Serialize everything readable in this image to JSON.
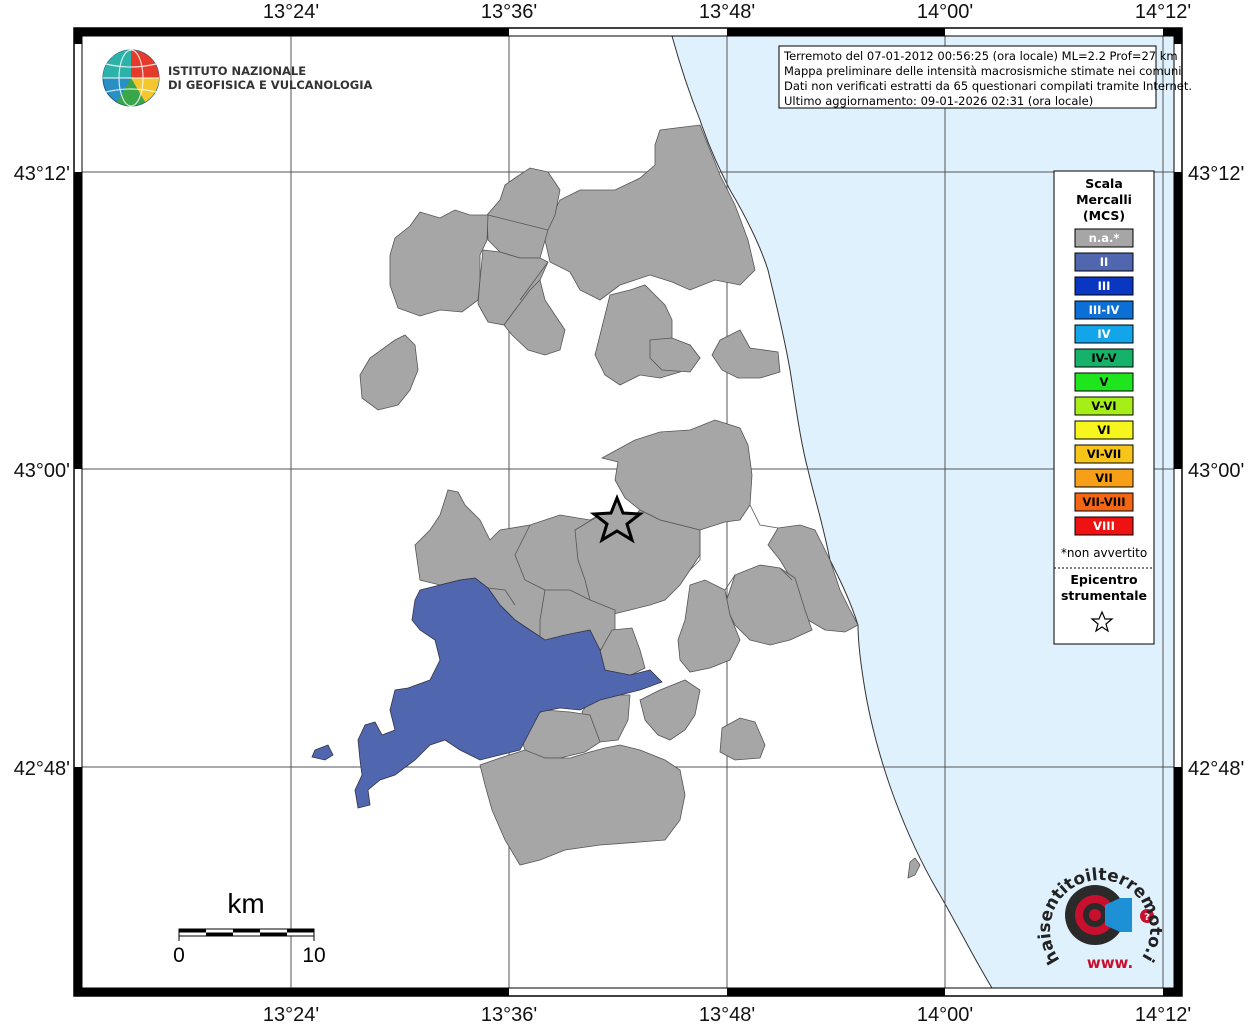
{
  "map": {
    "top_axis_labels": [
      "13°24'",
      "13°36'",
      "13°48'",
      "14°00'",
      "14°12'"
    ],
    "bottom_axis_labels": [
      "13°24'",
      "13°36'",
      "13°48'",
      "14°00'",
      "14°12'"
    ],
    "left_axis_labels": [
      "43°12'",
      "43°00'",
      "42°48'"
    ],
    "right_axis_labels": [
      "43°12'",
      "43°00'",
      "42°48'"
    ],
    "colors": {
      "sea": "#dff1fd",
      "not_felt": "#a6a6a6",
      "intensity_II": "#5066ae",
      "border": "#000000"
    }
  },
  "logo": {
    "line1": "ISTITUTO NAZIONALE",
    "line2": "DI GEOFISICA E VULCANOLOGIA"
  },
  "info_box": {
    "lines": [
      "Terremoto del 07-01-2012 00:56:25 (ora locale) ML=2.2 Prof=27 km",
      "Mappa preliminare delle intensità macrosismiche stimate nei comuni",
      "Dati non verificati estratti da 65 questionari compilati tramite Internet.",
      "Ultimo aggiornamento: 09-01-2026 02:31 (ora locale)"
    ]
  },
  "legend": {
    "title_lines": [
      "Scala",
      "Mercalli",
      "(MCS)"
    ],
    "items": [
      {
        "label": "n.a.*",
        "color": "#a6a6a6",
        "text_color": "#ffffff"
      },
      {
        "label": "II",
        "color": "#5066ae",
        "text_color": "#ffffff"
      },
      {
        "label": "III",
        "color": "#0a37c2",
        "text_color": "#ffffff"
      },
      {
        "label": "III-IV",
        "color": "#0c6fd6",
        "text_color": "#ffffff"
      },
      {
        "label": "IV",
        "color": "#12a5ea",
        "text_color": "#ffffff"
      },
      {
        "label": "IV-V",
        "color": "#16b26a",
        "text_color": "#000000"
      },
      {
        "label": "V",
        "color": "#1fe51f",
        "text_color": "#000000"
      },
      {
        "label": "V-VI",
        "color": "#a6ee17",
        "text_color": "#000000"
      },
      {
        "label": "VI",
        "color": "#f7f51e",
        "text_color": "#000000"
      },
      {
        "label": "VI-VII",
        "color": "#f7c41a",
        "text_color": "#000000"
      },
      {
        "label": "VII",
        "color": "#f7a017",
        "text_color": "#000000"
      },
      {
        "label": "VII-VIII",
        "color": "#f46614",
        "text_color": "#000000"
      },
      {
        "label": "VIII",
        "color": "#ee1212",
        "text_color": "#ffffff"
      }
    ],
    "note": "*non avvertito",
    "epicenter_lines": [
      "Epicentro",
      "strumentale"
    ]
  },
  "scale_bar": {
    "unit": "km",
    "start": "0",
    "end": "10"
  },
  "hsit_logo": {
    "text": "haisentitoilterremoto.it",
    "www": "www."
  }
}
